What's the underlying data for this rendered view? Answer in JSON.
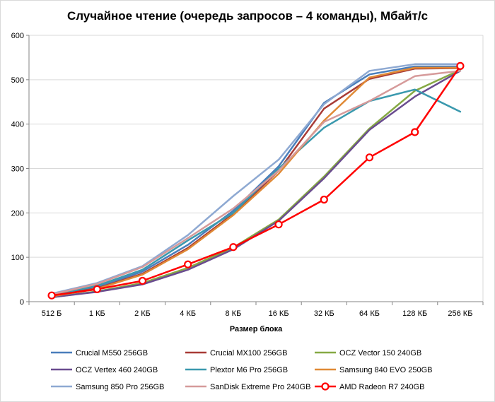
{
  "chart_data": {
    "type": "line",
    "title": "Случайное чтение (очередь запросов – 4 команды), Мбайт/с",
    "xlabel": "Размер блока",
    "ylabel": "",
    "categories": [
      "512 Б",
      "1 КБ",
      "2 КБ",
      "4 КБ",
      "8 КБ",
      "16 КБ",
      "32 КБ",
      "64 КБ",
      "128 КБ",
      "256 КБ"
    ],
    "ylim": [
      0,
      600
    ],
    "yticks": [
      0,
      100,
      200,
      300,
      400,
      500,
      600
    ],
    "grid": true,
    "legend_position": "bottom",
    "series": [
      {
        "name": "Crucial M550 256GB",
        "color": "#4a7ebb",
        "values": [
          14,
          32,
          68,
          128,
          205,
          305,
          448,
          512,
          530,
          530
        ]
      },
      {
        "name": "Crucial MX100 256GB",
        "color": "#a83b36",
        "values": [
          13,
          30,
          63,
          121,
          198,
          295,
          435,
          502,
          525,
          526
        ]
      },
      {
        "name": "OCZ Vector 150 240GB",
        "color": "#86a944",
        "values": [
          10,
          23,
          42,
          76,
          122,
          185,
          282,
          390,
          475,
          522
        ]
      },
      {
        "name": "OCZ Vertex 460 240GB",
        "color": "#6a4c8f",
        "values": [
          10,
          22,
          39,
          72,
          118,
          182,
          278,
          387,
          462,
          520
        ]
      },
      {
        "name": "Plextor M6 Pro 256GB",
        "color": "#3a99ae",
        "values": [
          14,
          36,
          72,
          138,
          200,
          300,
          392,
          452,
          478,
          428
        ]
      },
      {
        "name": "Samsung 840 EVO 250GB",
        "color": "#e08a36",
        "values": [
          12,
          29,
          61,
          118,
          195,
          288,
          408,
          505,
          527,
          527
        ]
      },
      {
        "name": "Samsung 850 Pro 256GB",
        "color": "#8ea9d2",
        "values": [
          18,
          42,
          80,
          150,
          238,
          320,
          445,
          520,
          535,
          535
        ]
      },
      {
        "name": "SanDisk Extreme Pro 240GB",
        "color": "#d69a9a",
        "values": [
          16,
          40,
          78,
          143,
          210,
          295,
          405,
          452,
          508,
          520
        ]
      },
      {
        "name": "AMD Radeon R7 240GB",
        "color": "#ff0000",
        "values": [
          14,
          28,
          47,
          84,
          123,
          174,
          230,
          325,
          382,
          531
        ],
        "markers": true
      }
    ]
  }
}
